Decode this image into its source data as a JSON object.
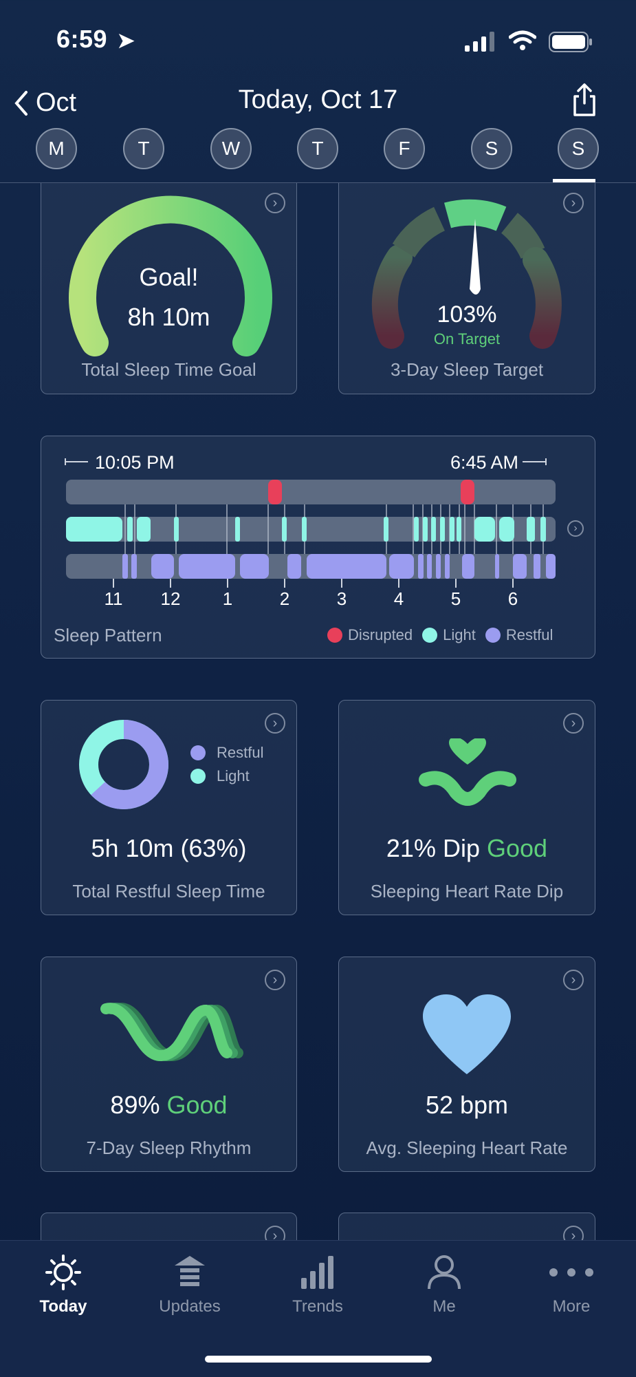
{
  "status": {
    "time": "6:59"
  },
  "nav": {
    "back_label": "Oct",
    "title": "Today, Oct 17",
    "days": [
      "M",
      "T",
      "W",
      "T",
      "F",
      "S",
      "S"
    ]
  },
  "cards": {
    "sleep_goal": {
      "line1": "Goal!",
      "line2": "8h 10m",
      "label": "Total Sleep Time Goal"
    },
    "sleep_target": {
      "value": "103%",
      "status": "On Target",
      "label": "3-Day Sleep Target"
    },
    "sleep_pattern": {
      "start": "10:05 PM",
      "end": "6:45 AM",
      "hours": [
        "11",
        "12",
        "1",
        "2",
        "3",
        "4",
        "5",
        "6"
      ],
      "label": "Sleep Pattern",
      "legend": {
        "disrupted": "Disrupted",
        "light": "Light",
        "restful": "Restful"
      },
      "colors": {
        "disrupted": "#e8405a",
        "light": "#8ff5e6",
        "restful": "#9b9cf0"
      }
    },
    "restful": {
      "legend_restful": "Restful",
      "legend_light": "Light",
      "value": "5h 10m (63%)",
      "label": "Total Restful Sleep Time",
      "restful_fraction": 0.63
    },
    "hr_dip": {
      "value": "21% Dip",
      "status": "Good",
      "label": "Sleeping Heart Rate Dip"
    },
    "rhythm": {
      "value": "89%",
      "status": "Good",
      "label": "7-Day Sleep Rhythm"
    },
    "avg_hr": {
      "value": "52 bpm",
      "label": "Avg. Sleeping Heart Rate"
    }
  },
  "tabs": [
    {
      "label": "Today",
      "icon": "sun-icon"
    },
    {
      "label": "Updates",
      "icon": "updates-icon"
    },
    {
      "label": "Trends",
      "icon": "bars-icon"
    },
    {
      "label": "Me",
      "icon": "person-icon"
    },
    {
      "label": "More",
      "icon": "more-icon"
    }
  ]
}
